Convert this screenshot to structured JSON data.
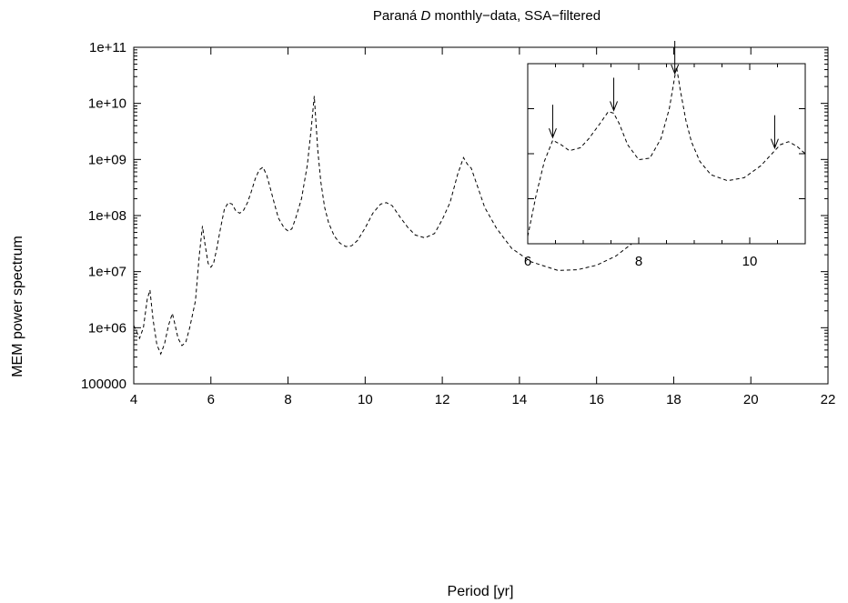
{
  "chart_data": {
    "type": "line",
    "title_main": "Paraná ",
    "title_italic": "D",
    "title_rest": " monthly−data, SSA−filtered",
    "xlabel": "Period [yr]",
    "ylabel": "MEM power spectrum",
    "xlim": [
      4,
      22
    ],
    "ylim": [
      100000,
      100000000000
    ],
    "y_scale": "log",
    "x_ticks": [
      4,
      6,
      8,
      10,
      12,
      14,
      16,
      18,
      20,
      22
    ],
    "x_tick_labels": [
      "4",
      "6",
      "8",
      "10",
      "12",
      "14",
      "16",
      "18",
      "20",
      "22"
    ],
    "y_ticks": [
      100000,
      1000000,
      10000000,
      100000000,
      1000000000,
      10000000000,
      100000000000
    ],
    "y_tick_labels": [
      "100000",
      "1e+06",
      "1e+07",
      "1e+08",
      "1e+09",
      "1e+10",
      "1e+11"
    ],
    "series": [
      {
        "style": "dashed",
        "x": [
          4.0,
          4.15,
          4.25,
          4.35,
          4.42,
          4.5,
          4.6,
          4.7,
          4.8,
          4.9,
          5.0,
          5.05,
          5.15,
          5.25,
          5.35,
          5.45,
          5.6,
          5.7,
          5.78,
          5.85,
          5.93,
          6.0,
          6.07,
          6.15,
          6.25,
          6.35,
          6.45,
          6.55,
          6.65,
          6.75,
          6.85,
          6.95,
          7.05,
          7.15,
          7.25,
          7.35,
          7.45,
          7.55,
          7.65,
          7.75,
          7.9,
          8.0,
          8.1,
          8.2,
          8.35,
          8.5,
          8.6,
          8.68,
          8.72,
          8.77,
          8.85,
          8.95,
          9.05,
          9.2,
          9.35,
          9.5,
          9.65,
          9.8,
          10.0,
          10.2,
          10.4,
          10.55,
          10.7,
          10.9,
          11.1,
          11.3,
          11.55,
          11.8,
          12.0,
          12.2,
          12.4,
          12.55,
          12.65,
          12.75,
          12.9,
          13.1,
          13.4,
          13.8,
          14.3,
          15.0,
          15.5,
          16.0,
          16.5,
          17.0,
          17.5,
          18.0,
          18.5,
          19.0,
          19.5,
          20.1
        ],
        "y": [
          1100000,
          650000,
          1000000,
          3200000,
          4700000,
          1400000,
          500000,
          340000,
          520000,
          1100000,
          1800000,
          1300000,
          650000,
          480000,
          550000,
          1000000,
          3000000,
          20000000,
          65000000,
          30000000,
          14000000,
          12000000,
          14000000,
          25000000,
          60000000,
          130000000,
          170000000,
          160000000,
          120000000,
          110000000,
          125000000,
          170000000,
          270000000,
          450000000,
          650000000,
          730000000,
          520000000,
          290000000,
          160000000,
          90000000,
          60000000,
          53000000,
          58000000,
          90000000,
          200000000,
          800000000,
          3500000000,
          13500000000,
          5000000000,
          1500000000,
          400000000,
          140000000,
          75000000,
          43000000,
          32000000,
          28000000,
          29000000,
          36000000,
          60000000,
          110000000,
          160000000,
          170000000,
          150000000,
          95000000,
          62000000,
          45000000,
          40000000,
          48000000,
          85000000,
          170000000,
          550000000,
          1080000000,
          820000000,
          700000000,
          350000000,
          140000000,
          60000000,
          26000000,
          15000000,
          10500000,
          10800000,
          13000000,
          19000000,
          35000000,
          75000000,
          180000000,
          310000000,
          310000000,
          190000000,
          105000000
        ]
      }
    ],
    "inset": {
      "type": "line",
      "xlim": [
        6,
        11
      ],
      "x_ticks": [
        6,
        8,
        10
      ],
      "x_tick_labels": [
        "6",
        "8",
        "10"
      ],
      "arrows_at_x": [
        6.45,
        7.55,
        8.65,
        10.45
      ],
      "series": [
        {
          "style": "dashed",
          "x": [
            6.0,
            6.15,
            6.3,
            6.45,
            6.6,
            6.75,
            6.95,
            7.1,
            7.3,
            7.45,
            7.55,
            7.65,
            7.8,
            8.0,
            8.2,
            8.4,
            8.55,
            8.68,
            8.75,
            8.85,
            8.95,
            9.1,
            9.3,
            9.6,
            9.9,
            10.2,
            10.4,
            10.55,
            10.7,
            10.85,
            11.0
          ],
          "y": [
            0.05,
            0.32,
            0.55,
            0.69,
            0.66,
            0.62,
            0.64,
            0.7,
            0.8,
            0.88,
            0.87,
            0.8,
            0.66,
            0.56,
            0.57,
            0.7,
            0.9,
            1.18,
            1.02,
            0.82,
            0.68,
            0.55,
            0.46,
            0.42,
            0.44,
            0.52,
            0.6,
            0.66,
            0.68,
            0.65,
            0.6
          ]
        }
      ]
    }
  }
}
